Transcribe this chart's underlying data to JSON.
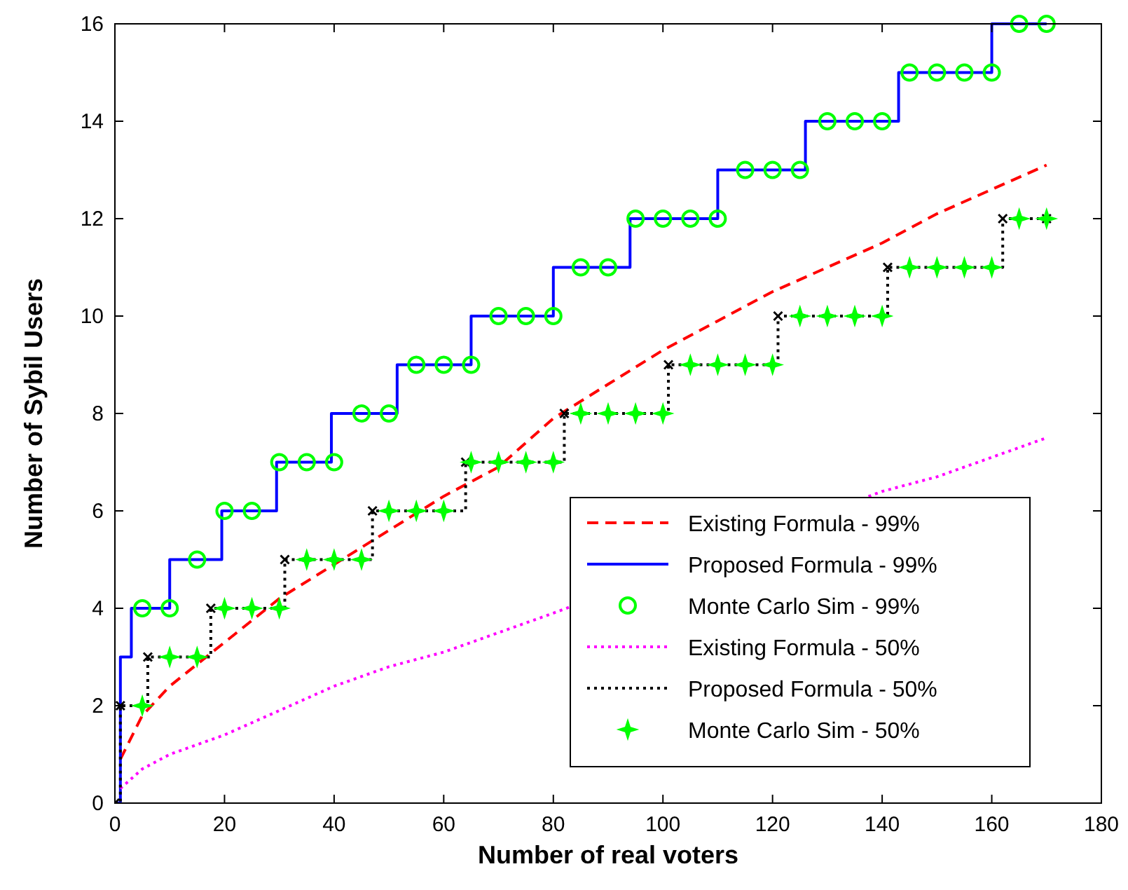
{
  "chart_data": {
    "type": "line",
    "xlabel": "Number of real voters",
    "ylabel": "Number of Sybil Users",
    "xlim": [
      0,
      180
    ],
    "ylim": [
      0,
      16
    ],
    "xticks": [
      0,
      20,
      40,
      60,
      80,
      100,
      120,
      140,
      160,
      180
    ],
    "yticks": [
      0,
      2,
      4,
      6,
      8,
      10,
      12,
      14,
      16
    ],
    "grid": false,
    "legend": "bottom right",
    "series": [
      {
        "name": "Existing Formula - 99%",
        "color": "#ff0000",
        "line_style": "dashed",
        "marker": "none",
        "x": [
          1,
          5,
          10,
          20,
          30,
          40,
          50,
          60,
          70,
          80,
          90,
          100,
          110,
          120,
          130,
          140,
          150,
          160,
          170
        ],
        "values": [
          0.9,
          1.8,
          2.4,
          3.3,
          4.2,
          4.9,
          5.6,
          6.3,
          6.9,
          7.9,
          8.6,
          9.3,
          9.9,
          10.5,
          11.0,
          11.5,
          12.1,
          12.6,
          13.1
        ]
      },
      {
        "name": "Proposed Formula - 99%",
        "type": "step",
        "color": "#0000ff",
        "line_style": "solid",
        "marker": "none",
        "x": [
          0,
          1,
          3,
          10,
          19.5,
          29.5,
          39.5,
          51.5,
          65,
          80,
          94,
          110,
          126,
          143,
          160,
          170
        ],
        "values": [
          0,
          3,
          4,
          5,
          6,
          7,
          8,
          9,
          10,
          11,
          12,
          13,
          14,
          15,
          16,
          16
        ]
      },
      {
        "name": "Monte Carlo Sim - 99%",
        "type": "scatter",
        "color": "#00ff00",
        "marker": "circle",
        "x": [
          5,
          10,
          15,
          20,
          25,
          30,
          35,
          40,
          45,
          50,
          55,
          60,
          65,
          70,
          75,
          80,
          85,
          90,
          95,
          100,
          105,
          110,
          115,
          120,
          125,
          130,
          135,
          140,
          145,
          150,
          155,
          160,
          165,
          170
        ],
        "values": [
          4,
          4,
          5,
          6,
          6,
          7,
          7,
          7,
          8,
          8,
          9,
          9,
          9,
          10,
          10,
          10,
          11,
          11,
          12,
          12,
          12,
          12,
          13,
          13,
          13,
          14,
          14,
          14,
          15,
          15,
          15,
          15,
          16,
          16
        ]
      },
      {
        "name": "Existing Formula - 50%",
        "color": "#ff00ff",
        "line_style": "dotted",
        "marker": "none",
        "x": [
          1,
          5,
          10,
          20,
          30,
          40,
          50,
          60,
          70,
          80,
          140,
          150,
          160,
          170
        ],
        "values": [
          0.3,
          0.7,
          1.0,
          1.4,
          1.9,
          2.4,
          2.8,
          3.1,
          3.5,
          3.9,
          6.4,
          6.7,
          7.1,
          7.5
        ]
      },
      {
        "name": "Proposed Formula - 50%",
        "type": "step",
        "color": "#000000",
        "line_style": "dotted",
        "marker": "cross",
        "x": [
          0,
          1,
          6,
          17.5,
          31,
          47,
          64,
          82,
          101,
          121,
          141,
          162,
          170
        ],
        "values": [
          0,
          2,
          3,
          4,
          5,
          6,
          7,
          8,
          9,
          10,
          11,
          12,
          12
        ]
      },
      {
        "name": "Monte Carlo Sim - 50%",
        "type": "scatter",
        "color": "#00ff00",
        "marker": "star",
        "x": [
          5,
          10,
          15,
          20,
          25,
          30,
          35,
          40,
          45,
          50,
          55,
          60,
          65,
          70,
          75,
          80,
          85,
          90,
          95,
          100,
          105,
          110,
          115,
          120,
          125,
          130,
          135,
          140,
          145,
          150,
          155,
          160,
          165,
          170
        ],
        "values": [
          2,
          3,
          3,
          4,
          4,
          4,
          5,
          5,
          5,
          6,
          6,
          6,
          7,
          7,
          7,
          7,
          8,
          8,
          8,
          8,
          9,
          9,
          9,
          9,
          10,
          10,
          10,
          10,
          11,
          11,
          11,
          11,
          12,
          12
        ]
      }
    ]
  }
}
